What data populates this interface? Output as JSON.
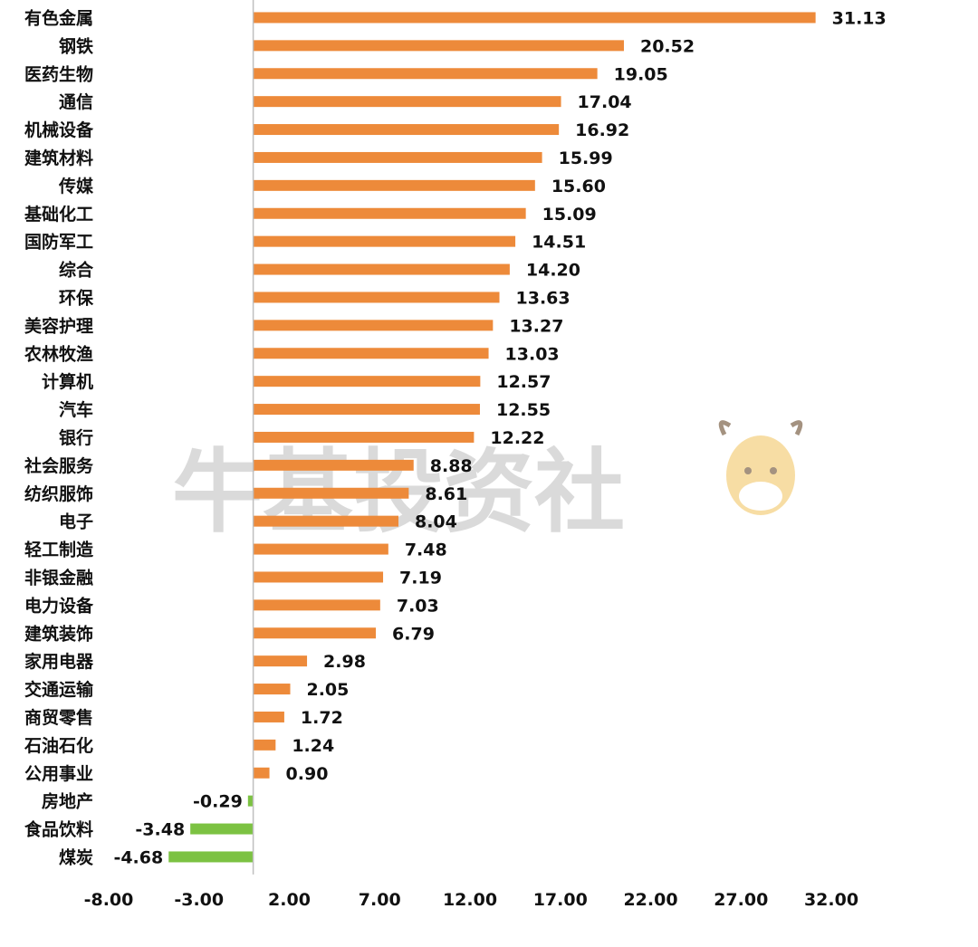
{
  "watermark": {
    "text": "牛基投资社"
  },
  "chart_data": {
    "type": "bar",
    "orientation": "horizontal",
    "title": "",
    "xlabel": "",
    "ylabel": "",
    "xlim": [
      -8,
      32
    ],
    "x_ticks": [
      -8,
      -3,
      2,
      7,
      12,
      17,
      22,
      27,
      32
    ],
    "x_tick_labels": [
      "-8.00",
      "-3.00",
      "2.00",
      "7.00",
      "12.00",
      "17.00",
      "22.00",
      "27.00",
      "32.00"
    ],
    "grid": false,
    "colors": {
      "positive": "#ED8A3A",
      "negative": "#7CC242"
    },
    "categories": [
      "有色金属",
      "钢铁",
      "医药生物",
      "通信",
      "机械设备",
      "建筑材料",
      "传媒",
      "基础化工",
      "国防军工",
      "综合",
      "环保",
      "美容护理",
      "农林牧渔",
      "计算机",
      "汽车",
      "银行",
      "社会服务",
      "纺织服饰",
      "电子",
      "轻工制造",
      "非银金融",
      "电力设备",
      "建筑装饰",
      "家用电器",
      "交通运输",
      "商贸零售",
      "石油石化",
      "公用事业",
      "房地产",
      "食品饮料",
      "煤炭"
    ],
    "values": [
      31.13,
      20.52,
      19.05,
      17.04,
      16.92,
      15.99,
      15.6,
      15.09,
      14.51,
      14.2,
      13.63,
      13.27,
      13.03,
      12.57,
      12.55,
      12.22,
      8.88,
      8.61,
      8.04,
      7.48,
      7.19,
      7.03,
      6.79,
      2.98,
      2.05,
      1.72,
      1.24,
      0.9,
      -0.29,
      -3.48,
      -4.68
    ],
    "value_labels": [
      "31.13",
      "20.52",
      "19.05",
      "17.04",
      "16.92",
      "15.99",
      "15.60",
      "15.09",
      "14.51",
      "14.20",
      "13.63",
      "13.27",
      "13.03",
      "12.57",
      "12.55",
      "12.22",
      "8.88",
      "8.61",
      "8.04",
      "7.48",
      "7.19",
      "7.03",
      "6.79",
      "2.98",
      "2.05",
      "1.72",
      "1.24",
      "0.90",
      "-0.29",
      "-3.48",
      "-4.68"
    ]
  }
}
